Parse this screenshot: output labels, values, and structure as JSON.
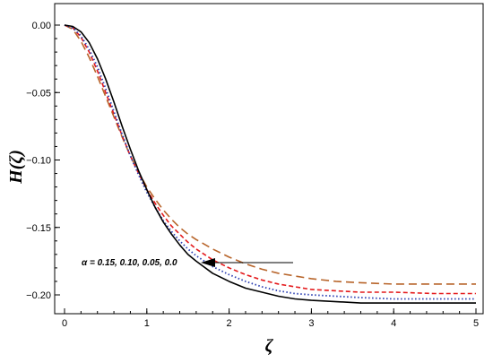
{
  "chart_data": {
    "type": "line",
    "xlabel": "ζ",
    "ylabel": "H(ζ)",
    "xlim": [
      0,
      5
    ],
    "ylim": [
      -0.21,
      0.0
    ],
    "xticks": [
      "0",
      "1",
      "2",
      "3",
      "4",
      "5"
    ],
    "yticks": [
      "0.00",
      "−0.05",
      "−0.10",
      "−0.15",
      "−0.20"
    ],
    "grid": false,
    "annotation": "α = 0.15, 0.10, 0.05, 0.0",
    "series": [
      {
        "color": "#b8652b",
        "dash": "long-dash",
        "x": [
          0,
          0.1,
          0.2,
          0.3,
          0.4,
          0.5,
          0.6,
          0.7,
          0.8,
          0.9,
          1.0,
          1.1,
          1.2,
          1.3,
          1.4,
          1.5,
          1.6,
          1.8,
          2.0,
          2.2,
          2.4,
          2.6,
          2.8,
          3.0,
          3.3,
          3.6,
          4.0,
          4.5,
          5.0
        ],
        "y": [
          0.0,
          -0.003,
          -0.012,
          -0.024,
          -0.038,
          -0.053,
          -0.068,
          -0.083,
          -0.097,
          -0.109,
          -0.12,
          -0.129,
          -0.137,
          -0.144,
          -0.15,
          -0.155,
          -0.159,
          -0.166,
          -0.172,
          -0.177,
          -0.181,
          -0.184,
          -0.186,
          -0.188,
          -0.19,
          -0.191,
          -0.192,
          -0.192,
          -0.192
        ]
      },
      {
        "color": "#e41a1c",
        "dash": "short-dash",
        "x": [
          0,
          0.1,
          0.2,
          0.3,
          0.4,
          0.5,
          0.6,
          0.7,
          0.8,
          0.9,
          1.0,
          1.1,
          1.2,
          1.3,
          1.4,
          1.5,
          1.6,
          1.8,
          2.0,
          2.2,
          2.4,
          2.6,
          2.8,
          3.0,
          3.3,
          3.6,
          4.0,
          4.5,
          5.0
        ],
        "y": [
          0.0,
          -0.002,
          -0.009,
          -0.02,
          -0.034,
          -0.05,
          -0.066,
          -0.082,
          -0.097,
          -0.11,
          -0.122,
          -0.132,
          -0.141,
          -0.149,
          -0.155,
          -0.161,
          -0.166,
          -0.174,
          -0.18,
          -0.185,
          -0.189,
          -0.192,
          -0.194,
          -0.196,
          -0.197,
          -0.198,
          -0.198,
          -0.199,
          -0.199
        ]
      },
      {
        "color": "#2b3fb3",
        "dash": "dotted",
        "x": [
          0,
          0.1,
          0.2,
          0.3,
          0.4,
          0.5,
          0.6,
          0.7,
          0.8,
          0.9,
          1.0,
          1.1,
          1.2,
          1.3,
          1.4,
          1.5,
          1.6,
          1.8,
          2.0,
          2.2,
          2.4,
          2.6,
          2.8,
          3.0,
          3.3,
          3.6,
          4.0,
          4.5,
          5.0
        ],
        "y": [
          0.0,
          -0.002,
          -0.008,
          -0.018,
          -0.031,
          -0.047,
          -0.064,
          -0.081,
          -0.097,
          -0.111,
          -0.124,
          -0.135,
          -0.145,
          -0.153,
          -0.16,
          -0.166,
          -0.171,
          -0.179,
          -0.185,
          -0.19,
          -0.194,
          -0.197,
          -0.199,
          -0.2,
          -0.201,
          -0.202,
          -0.203,
          -0.203,
          -0.203
        ]
      },
      {
        "color": "#000000",
        "dash": "solid",
        "x": [
          0,
          0.1,
          0.2,
          0.3,
          0.4,
          0.5,
          0.6,
          0.7,
          0.8,
          0.9,
          1.0,
          1.1,
          1.2,
          1.3,
          1.4,
          1.5,
          1.6,
          1.8,
          2.0,
          2.2,
          2.4,
          2.6,
          2.8,
          3.0,
          3.3,
          3.6,
          4.0,
          4.5,
          5.0
        ],
        "y": [
          0.0,
          -0.001,
          -0.005,
          -0.013,
          -0.025,
          -0.04,
          -0.057,
          -0.075,
          -0.092,
          -0.108,
          -0.122,
          -0.135,
          -0.146,
          -0.155,
          -0.163,
          -0.17,
          -0.175,
          -0.184,
          -0.19,
          -0.195,
          -0.198,
          -0.201,
          -0.203,
          -0.204,
          -0.205,
          -0.206,
          -0.206,
          -0.206,
          -0.206
        ]
      }
    ]
  }
}
